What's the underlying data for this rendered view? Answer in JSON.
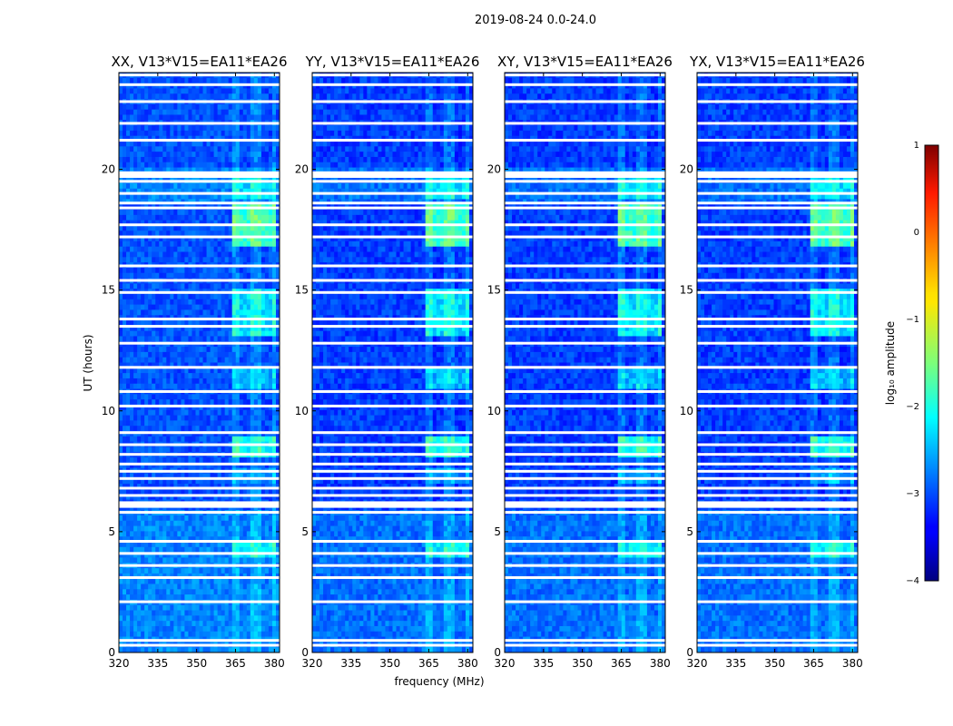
{
  "chart_data": {
    "type": "heatmap",
    "title": "2019-08-24 0.0-24.0",
    "xlabel": "frequency (MHz)",
    "ylabel": "UT (hours)",
    "xlim": [
      320,
      382
    ],
    "ylim": [
      0,
      24
    ],
    "xticks": [
      "320",
      "335",
      "350",
      "365",
      "380"
    ],
    "yticks": [
      "0",
      "5",
      "10",
      "15",
      "20"
    ],
    "colormap": "jet",
    "colorbar": {
      "label": "log₁₀ amplitude",
      "range": [
        -4,
        1
      ],
      "ticks": [
        "1",
        "0",
        "−1",
        "−2",
        "−3",
        "−4"
      ]
    },
    "panels": [
      {
        "title": "XX, V13*V15=EA11*EA26",
        "polarization": "XX"
      },
      {
        "title": "YY, V13*V15=EA11*EA26",
        "polarization": "YY"
      },
      {
        "title": "XY, V13*V15=EA11*EA26",
        "polarization": "XY"
      },
      {
        "title": "YX, V13*V15=EA11*EA26",
        "polarization": "YX"
      }
    ],
    "flagged_hours": [
      0.3,
      0.5,
      2.1,
      3.1,
      3.6,
      4.1,
      4.6,
      5.8,
      6.1,
      6.2,
      6.5,
      6.8,
      7.2,
      7.5,
      7.8,
      8.2,
      8.6,
      9.1,
      10.2,
      10.8,
      11.8,
      12.8,
      13.5,
      13.8,
      14.9,
      15.4,
      16.0,
      17.2,
      17.7,
      18.4,
      18.6,
      19.0,
      19.5,
      19.7,
      21.2,
      21.9,
      22.8,
      23.5,
      23.9
    ],
    "rfi_band_mhz": [
      363,
      381
    ],
    "rfi_intervals": [
      {
        "start": 0.0,
        "end": 2.5,
        "level": -2.6
      },
      {
        "start": 4.0,
        "end": 4.5,
        "level": -1.9
      },
      {
        "start": 7.0,
        "end": 7.6,
        "level": -2.4
      },
      {
        "start": 8.0,
        "end": 9.0,
        "level": -1.8
      },
      {
        "start": 10.9,
        "end": 11.8,
        "level": -2.2
      },
      {
        "start": 13.2,
        "end": 15.0,
        "level": -2.0
      },
      {
        "start": 16.9,
        "end": 18.5,
        "level": -1.6
      },
      {
        "start": 18.8,
        "end": 19.7,
        "level": -2.0
      }
    ]
  }
}
